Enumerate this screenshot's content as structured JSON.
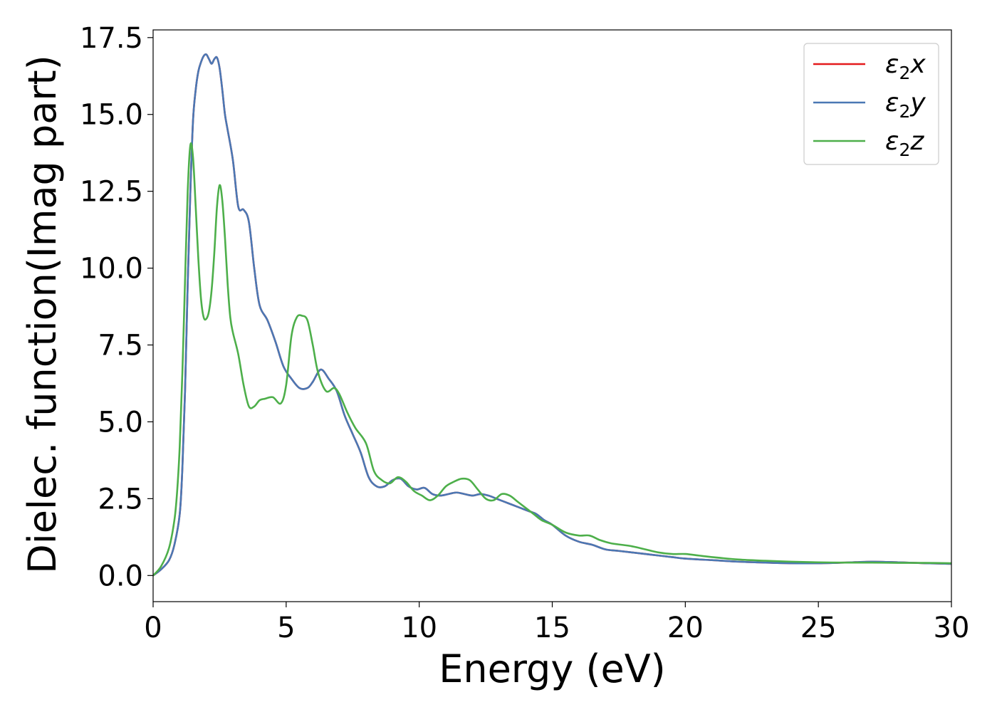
{
  "chart_data": {
    "type": "line",
    "title": "",
    "xlabel": "Energy (eV)",
    "ylabel": "Dielec. function(Imag part)",
    "xlim": [
      0,
      30
    ],
    "ylim": [
      -0.85,
      17.75
    ],
    "xticks": [
      0,
      5,
      10,
      15,
      20,
      25,
      30
    ],
    "xtick_labels": [
      "0",
      "5",
      "10",
      "15",
      "20",
      "25",
      "30"
    ],
    "yticks": [
      0,
      2.5,
      5,
      7.5,
      10,
      12.5,
      15,
      17.5
    ],
    "ytick_labels": [
      "0.0",
      "2.5",
      "5.0",
      "7.5",
      "10.0",
      "12.5",
      "15.0",
      "17.5"
    ],
    "grid": false,
    "legend_position": "top-right",
    "series": [
      {
        "name": "ε2x",
        "legend_main": "ε",
        "legend_sub": "2",
        "legend_suffix": "x",
        "color": "#e41a1c",
        "x": [
          0,
          0.3,
          0.6,
          0.8,
          1.0,
          1.1,
          1.2,
          1.3,
          1.4,
          1.5,
          1.6,
          1.7,
          1.8,
          1.9,
          2.0,
          2.1,
          2.2,
          2.3,
          2.4,
          2.5,
          2.6,
          2.7,
          2.8,
          3.0,
          3.2,
          3.4,
          3.6,
          3.8,
          4.0,
          4.3,
          4.6,
          4.9,
          5.2,
          5.5,
          5.8,
          6.0,
          6.3,
          6.6,
          6.9,
          7.2,
          7.5,
          7.8,
          8.1,
          8.4,
          8.7,
          9.0,
          9.3,
          9.6,
          9.9,
          10.2,
          10.5,
          10.8,
          11.1,
          11.4,
          11.7,
          12.0,
          12.3,
          12.6,
          12.9,
          13.2,
          13.5,
          13.8,
          14.1,
          14.4,
          14.7,
          15.0,
          15.5,
          16.0,
          16.5,
          17.0,
          17.5,
          18.0,
          18.5,
          19.0,
          19.5,
          20.0,
          21.0,
          22.0,
          23.0,
          24.0,
          25.0,
          26.0,
          27.0,
          28.0,
          29.0,
          30.0
        ],
        "y": [
          0.0,
          0.2,
          0.5,
          1.0,
          2.0,
          3.5,
          6.0,
          9.5,
          12.5,
          14.8,
          15.8,
          16.4,
          16.7,
          16.9,
          16.95,
          16.8,
          16.65,
          16.8,
          16.85,
          16.5,
          15.8,
          15.0,
          14.5,
          13.5,
          12.0,
          11.9,
          11.5,
          10.0,
          8.8,
          8.3,
          7.6,
          6.8,
          6.4,
          6.1,
          6.1,
          6.3,
          6.7,
          6.4,
          6.0,
          5.2,
          4.6,
          4.0,
          3.2,
          2.9,
          2.9,
          3.1,
          3.15,
          2.9,
          2.8,
          2.85,
          2.65,
          2.6,
          2.65,
          2.7,
          2.65,
          2.6,
          2.65,
          2.6,
          2.5,
          2.4,
          2.3,
          2.2,
          2.1,
          2.0,
          1.8,
          1.65,
          1.3,
          1.1,
          1.0,
          0.85,
          0.8,
          0.75,
          0.7,
          0.65,
          0.6,
          0.55,
          0.5,
          0.45,
          0.42,
          0.4,
          0.4,
          0.42,
          0.45,
          0.43,
          0.4,
          0.38
        ]
      },
      {
        "name": "ε2y",
        "legend_main": "ε",
        "legend_sub": "2",
        "legend_suffix": "y",
        "color": "#4a78b4",
        "x": [
          0,
          0.3,
          0.6,
          0.8,
          1.0,
          1.1,
          1.2,
          1.3,
          1.4,
          1.5,
          1.6,
          1.7,
          1.8,
          1.9,
          2.0,
          2.1,
          2.2,
          2.3,
          2.4,
          2.5,
          2.6,
          2.7,
          2.8,
          3.0,
          3.2,
          3.4,
          3.6,
          3.8,
          4.0,
          4.3,
          4.6,
          4.9,
          5.2,
          5.5,
          5.8,
          6.0,
          6.3,
          6.6,
          6.9,
          7.2,
          7.5,
          7.8,
          8.1,
          8.4,
          8.7,
          9.0,
          9.3,
          9.6,
          9.9,
          10.2,
          10.5,
          10.8,
          11.1,
          11.4,
          11.7,
          12.0,
          12.3,
          12.6,
          12.9,
          13.2,
          13.5,
          13.8,
          14.1,
          14.4,
          14.7,
          15.0,
          15.5,
          16.0,
          16.5,
          17.0,
          17.5,
          18.0,
          18.5,
          19.0,
          19.5,
          20.0,
          21.0,
          22.0,
          23.0,
          24.0,
          25.0,
          26.0,
          27.0,
          28.0,
          29.0,
          30.0
        ],
        "y": [
          0.0,
          0.2,
          0.5,
          1.0,
          2.0,
          3.5,
          6.0,
          9.5,
          12.5,
          14.8,
          15.8,
          16.4,
          16.7,
          16.9,
          16.95,
          16.8,
          16.65,
          16.8,
          16.85,
          16.5,
          15.8,
          15.0,
          14.5,
          13.5,
          12.0,
          11.9,
          11.5,
          10.0,
          8.8,
          8.3,
          7.6,
          6.8,
          6.4,
          6.1,
          6.1,
          6.3,
          6.7,
          6.4,
          6.0,
          5.2,
          4.6,
          4.0,
          3.2,
          2.9,
          2.9,
          3.1,
          3.15,
          2.9,
          2.8,
          2.85,
          2.65,
          2.6,
          2.65,
          2.7,
          2.65,
          2.6,
          2.65,
          2.6,
          2.5,
          2.4,
          2.3,
          2.2,
          2.1,
          2.0,
          1.8,
          1.65,
          1.3,
          1.1,
          1.0,
          0.85,
          0.8,
          0.75,
          0.7,
          0.65,
          0.6,
          0.55,
          0.5,
          0.45,
          0.42,
          0.4,
          0.4,
          0.42,
          0.45,
          0.43,
          0.4,
          0.38
        ]
      },
      {
        "name": "ε2z",
        "legend_main": "ε",
        "legend_sub": "2",
        "legend_suffix": "z",
        "color": "#4daf4a",
        "x": [
          0,
          0.3,
          0.6,
          0.8,
          0.9,
          1.0,
          1.1,
          1.2,
          1.3,
          1.4,
          1.5,
          1.6,
          1.7,
          1.8,
          1.9,
          2.0,
          2.1,
          2.2,
          2.3,
          2.4,
          2.5,
          2.6,
          2.7,
          2.8,
          2.9,
          3.0,
          3.2,
          3.4,
          3.6,
          3.8,
          4.0,
          4.2,
          4.5,
          4.8,
          5.0,
          5.2,
          5.4,
          5.6,
          5.8,
          6.0,
          6.2,
          6.5,
          6.8,
          7.0,
          7.3,
          7.6,
          8.0,
          8.3,
          8.6,
          8.9,
          9.2,
          9.5,
          9.8,
          10.1,
          10.4,
          10.7,
          11.0,
          11.3,
          11.6,
          11.9,
          12.2,
          12.5,
          12.8,
          13.1,
          13.4,
          13.7,
          14.0,
          14.3,
          14.6,
          15.0,
          15.5,
          16.0,
          16.4,
          16.8,
          17.2,
          17.6,
          18.0,
          18.5,
          19.0,
          19.5,
          20.0,
          20.5,
          21.0,
          22.0,
          23.0,
          24.0,
          25.0,
          26.0,
          27.0,
          28.0,
          29.0,
          30.0
        ],
        "y": [
          0.0,
          0.3,
          0.9,
          1.8,
          2.7,
          4.2,
          6.6,
          9.6,
          12.5,
          14.0,
          13.6,
          12.0,
          10.3,
          9.0,
          8.4,
          8.35,
          8.6,
          9.3,
          10.5,
          12.0,
          12.7,
          12.2,
          11.0,
          9.5,
          8.4,
          7.9,
          7.2,
          6.2,
          5.5,
          5.5,
          5.7,
          5.75,
          5.8,
          5.6,
          6.2,
          7.8,
          8.4,
          8.45,
          8.3,
          7.5,
          6.6,
          6.0,
          6.1,
          5.9,
          5.3,
          4.8,
          4.3,
          3.4,
          3.1,
          3.0,
          3.2,
          3.05,
          2.75,
          2.6,
          2.45,
          2.6,
          2.9,
          3.05,
          3.15,
          3.1,
          2.8,
          2.5,
          2.45,
          2.65,
          2.6,
          2.4,
          2.2,
          2.0,
          1.8,
          1.65,
          1.4,
          1.3,
          1.3,
          1.15,
          1.05,
          1.0,
          0.95,
          0.85,
          0.75,
          0.7,
          0.7,
          0.65,
          0.6,
          0.52,
          0.48,
          0.45,
          0.43,
          0.42,
          0.42,
          0.41,
          0.41,
          0.4
        ]
      }
    ]
  }
}
